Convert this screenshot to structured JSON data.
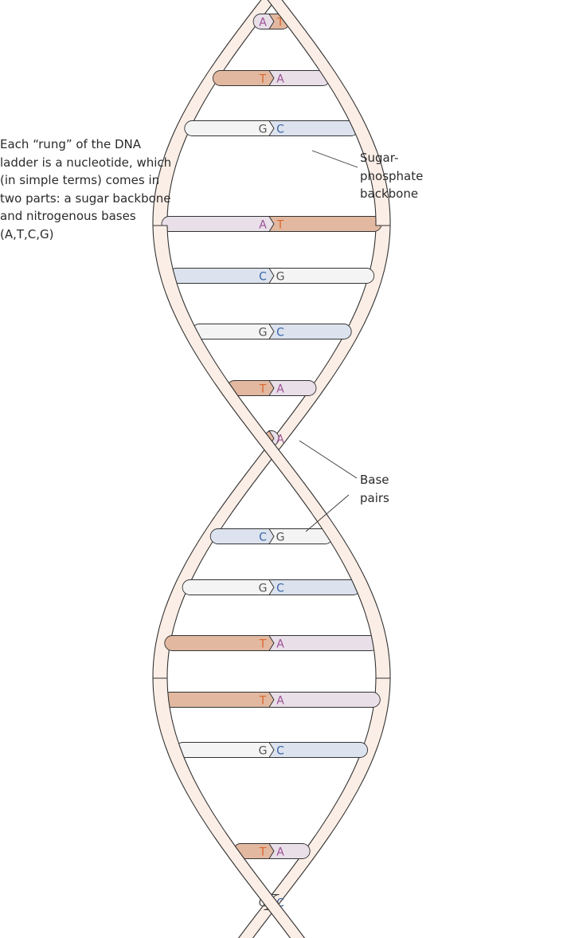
{
  "intro_text": "Each “rung” of the DNA\nladder is a nucleotide, which\n(in simple terms) comes in\ntwo parts: a sugar backbone\nand nitrogenous bases\n(A,T,C,G)",
  "labels": {
    "backbone": "Sugar-\nphosphate\nbackbone",
    "base_pairs": "Base\npairs"
  },
  "colors": {
    "A_fill": "#e8dfe8",
    "T_fill": "#e2b8a0",
    "C_fill": "#dce3ee",
    "G_fill": "#f4f4f4",
    "A_text": "#9b4f96",
    "T_text": "#d9692c",
    "C_text": "#3a64a8",
    "G_text": "#555555",
    "backbone_fill": "#fbeee6",
    "outline": "#333333"
  },
  "rungs": [
    {
      "left": "A",
      "right": "T"
    },
    {
      "left": "T",
      "right": "A"
    },
    {
      "left": "G",
      "right": "C"
    },
    {
      "left": "A",
      "right": "T"
    },
    {
      "left": "C",
      "right": "G"
    },
    {
      "left": "G",
      "right": "C"
    },
    {
      "left": "T",
      "right": "A"
    },
    {
      "left": "T",
      "right": "A"
    },
    {
      "left": "C",
      "right": "G"
    },
    {
      "left": "G",
      "right": "C"
    },
    {
      "left": "T",
      "right": "A"
    },
    {
      "left": "T",
      "right": "A"
    },
    {
      "left": "G",
      "right": "C"
    },
    {
      "left": "T",
      "right": "A"
    },
    {
      "left": "G",
      "right": "C"
    }
  ]
}
